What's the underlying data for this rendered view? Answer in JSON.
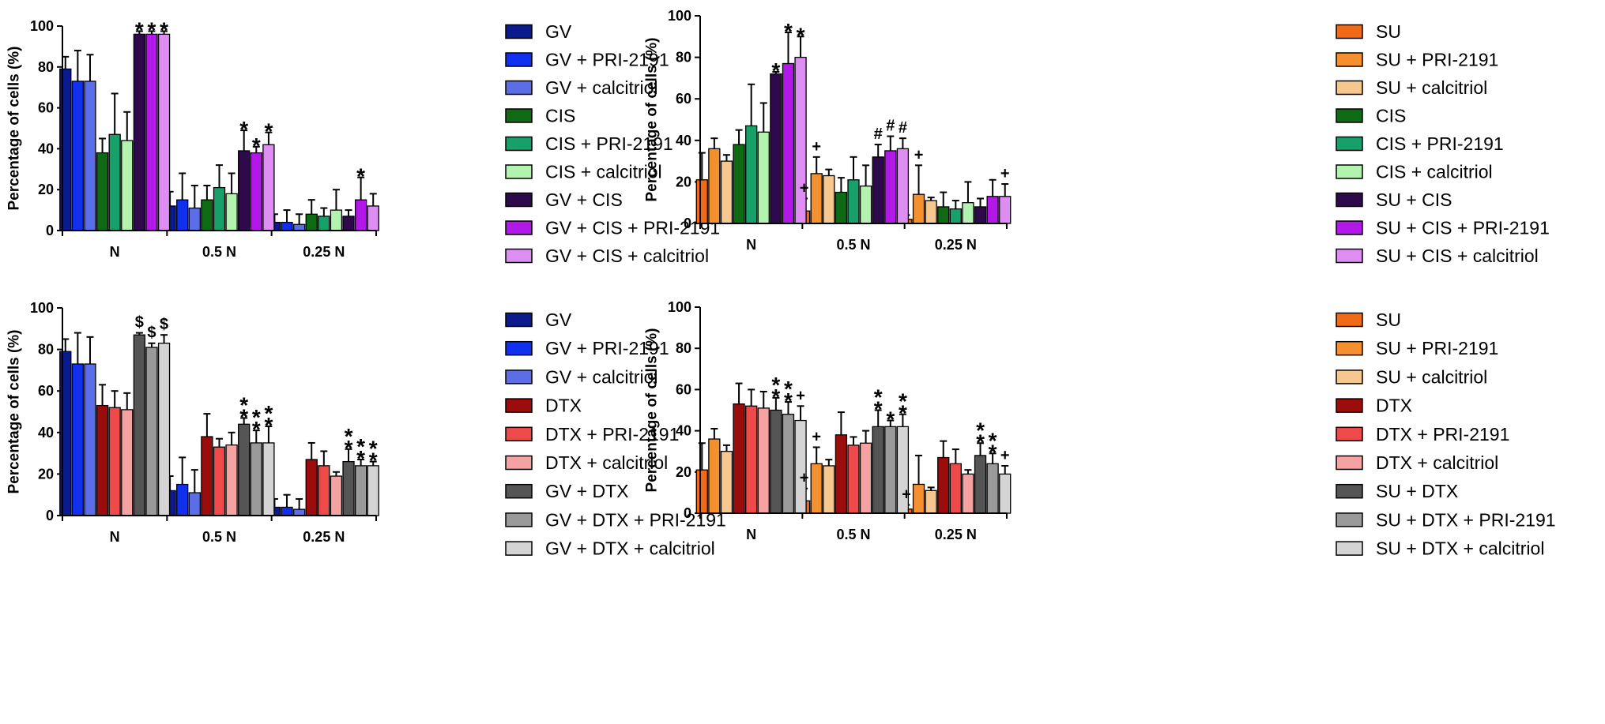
{
  "chart_data": [
    {
      "type": "bar",
      "ylabel": "Percentage of cells (%)",
      "ylim": [
        0,
        100
      ],
      "yticks": [
        "0",
        "20",
        "40",
        "60",
        "80",
        "100"
      ],
      "categories": [
        "N",
        "0.5 N",
        "0.25 N"
      ],
      "legend": "right",
      "series": [
        {
          "name": "GV",
          "color": "#0b1a8c",
          "values": [
            79,
            12,
            4
          ],
          "errors": [
            6,
            7,
            4
          ]
        },
        {
          "name": "GV + PRI-2191",
          "color": "#1030ee",
          "values": [
            73,
            15,
            4
          ],
          "errors": [
            15,
            13,
            6
          ]
        },
        {
          "name": "GV + calcitriol",
          "color": "#5b6ee8",
          "values": [
            73,
            11,
            3
          ],
          "errors": [
            13,
            11,
            5
          ]
        },
        {
          "name": "CIS",
          "color": "#0e6b14",
          "values": [
            38,
            15,
            8
          ],
          "errors": [
            7,
            7,
            7
          ]
        },
        {
          "name": "CIS + PRI-2191",
          "color": "#17a06a",
          "values": [
            47,
            21,
            7
          ],
          "errors": [
            20,
            11,
            4
          ]
        },
        {
          "name": "CIS + calcitriol",
          "color": "#b4f2b0",
          "values": [
            44,
            18,
            10
          ],
          "errors": [
            14,
            10,
            10
          ]
        },
        {
          "name": "GV + CIS",
          "color": "#2e0a4c",
          "values": [
            96,
            39,
            7
          ],
          "errors": [
            1.5,
            10,
            3
          ]
        },
        {
          "name": "GV + CIS + PRI-2191",
          "color": "#b218e8",
          "values": [
            96,
            38,
            15
          ],
          "errors": [
            1.5,
            3,
            11
          ]
        },
        {
          "name": "GV + CIS + calcitriol",
          "color": "#de8ef2",
          "values": [
            96,
            42,
            12
          ],
          "errors": [
            1.5,
            6,
            6
          ]
        }
      ],
      "annotations": [
        {
          "group": 0,
          "series": 6,
          "text": "*"
        },
        {
          "group": 0,
          "series": 7,
          "text": "*"
        },
        {
          "group": 0,
          "series": 8,
          "text": "*"
        },
        {
          "group": 1,
          "series": 6,
          "text": "*"
        },
        {
          "group": 1,
          "series": 7,
          "text": "*"
        },
        {
          "group": 1,
          "series": 8,
          "text": "*"
        },
        {
          "group": 2,
          "series": 7,
          "text": "*"
        }
      ]
    },
    {
      "type": "bar",
      "ylabel": "Percentage of cells (%)",
      "ylim": [
        0,
        100
      ],
      "yticks": [
        "0",
        "20",
        "40",
        "60",
        "80",
        "100"
      ],
      "categories": [
        "N",
        "0.5 N",
        "0.25 N"
      ],
      "legend": "right",
      "series": [
        {
          "name": "SU",
          "color": "#f06a18",
          "values": [
            21,
            6,
            2
          ],
          "errors": [
            13,
            6,
            2
          ]
        },
        {
          "name": "SU + PRI-2191",
          "color": "#f49030",
          "values": [
            36,
            24,
            14
          ],
          "errors": [
            5,
            8,
            14
          ]
        },
        {
          "name": "SU + calcitriol",
          "color": "#f6c890",
          "values": [
            30,
            23,
            11
          ],
          "errors": [
            3,
            3,
            1.5
          ]
        },
        {
          "name": "CIS",
          "color": "#0e6b14",
          "values": [
            38,
            15,
            8
          ],
          "errors": [
            7,
            7,
            7
          ]
        },
        {
          "name": "CIS + PRI-2191",
          "color": "#17a06a",
          "values": [
            47,
            21,
            7
          ],
          "errors": [
            20,
            11,
            4
          ]
        },
        {
          "name": "CIS + calcitriol",
          "color": "#b4f2b0",
          "values": [
            44,
            18,
            10
          ],
          "errors": [
            14,
            10,
            10
          ]
        },
        {
          "name": "SU + CIS",
          "color": "#2e0a4c",
          "values": [
            72,
            32,
            8
          ],
          "errors": [
            1,
            6,
            4
          ]
        },
        {
          "name": "SU + CIS + PRI-2191",
          "color": "#b218e8",
          "values": [
            77,
            35,
            13
          ],
          "errors": [
            15,
            7,
            8
          ]
        },
        {
          "name": "SU + CIS + calcitriol",
          "color": "#de8ef2",
          "values": [
            80,
            36,
            13
          ],
          "errors": [
            10,
            5,
            6
          ]
        }
      ],
      "annotations": [
        {
          "group": 0,
          "series": 6,
          "text": "*"
        },
        {
          "group": 0,
          "series": 7,
          "text": "*"
        },
        {
          "group": 0,
          "series": 8,
          "text": "*"
        },
        {
          "group": 1,
          "series": 0,
          "text": "+"
        },
        {
          "group": 1,
          "series": 1,
          "text": "+"
        },
        {
          "group": 1,
          "series": 6,
          "text": "#"
        },
        {
          "group": 1,
          "series": 7,
          "text": "#"
        },
        {
          "group": 1,
          "series": 8,
          "text": "#"
        },
        {
          "group": 2,
          "series": 1,
          "text": "+"
        },
        {
          "group": 2,
          "series": 8,
          "text": "+"
        }
      ]
    },
    {
      "type": "bar",
      "ylabel": "Percentage of cells (%)",
      "ylim": [
        0,
        100
      ],
      "yticks": [
        "0",
        "20",
        "40",
        "60",
        "80",
        "100"
      ],
      "categories": [
        "N",
        "0.5 N",
        "0.25 N"
      ],
      "legend": "right",
      "series": [
        {
          "name": "GV",
          "color": "#0b1a8c",
          "values": [
            79,
            12,
            4
          ],
          "errors": [
            6,
            7,
            4
          ]
        },
        {
          "name": "GV + PRI-2191",
          "color": "#1030ee",
          "values": [
            73,
            15,
            4
          ],
          "errors": [
            15,
            13,
            6
          ]
        },
        {
          "name": "GV + calcitriol",
          "color": "#5b6ee8",
          "values": [
            73,
            11,
            3
          ],
          "errors": [
            13,
            11,
            5
          ]
        },
        {
          "name": "DTX",
          "color": "#9b0c0c",
          "values": [
            53,
            38,
            27
          ],
          "errors": [
            10,
            11,
            8
          ]
        },
        {
          "name": "DTX + PRI-2191",
          "color": "#ee4a4a",
          "values": [
            52,
            33,
            24
          ],
          "errors": [
            8,
            4,
            7
          ]
        },
        {
          "name": "DTX + calcitriol",
          "color": "#f4a2a2",
          "values": [
            51,
            34,
            19
          ],
          "errors": [
            8,
            6,
            2
          ]
        },
        {
          "name": "GV + DTX",
          "color": "#555555",
          "values": [
            87,
            44,
            26
          ],
          "errors": [
            1,
            3,
            6
          ]
        },
        {
          "name": "GV + DTX + PRI-2191",
          "color": "#9a9a9a",
          "values": [
            81,
            35,
            24
          ],
          "errors": [
            2,
            6,
            3
          ]
        },
        {
          "name": "GV + DTX + calcitriol",
          "color": "#d4d4d4",
          "values": [
            83,
            35,
            24
          ],
          "errors": [
            4,
            8,
            2
          ]
        }
      ],
      "annotations": [
        {
          "group": 0,
          "series": 6,
          "text": "$"
        },
        {
          "group": 0,
          "series": 7,
          "text": "$"
        },
        {
          "group": 0,
          "series": 8,
          "text": "$"
        },
        {
          "group": 1,
          "series": 6,
          "text": "*"
        },
        {
          "group": 1,
          "series": 6,
          "text": "*"
        },
        {
          "group": 1,
          "series": 7,
          "text": "*"
        },
        {
          "group": 1,
          "series": 7,
          "text": "*"
        },
        {
          "group": 1,
          "series": 8,
          "text": "*"
        },
        {
          "group": 1,
          "series": 8,
          "text": "*"
        },
        {
          "group": 2,
          "series": 6,
          "text": "*"
        },
        {
          "group": 2,
          "series": 6,
          "text": "*"
        },
        {
          "group": 2,
          "series": 7,
          "text": "*"
        },
        {
          "group": 2,
          "series": 7,
          "text": "*"
        },
        {
          "group": 2,
          "series": 8,
          "text": "*"
        },
        {
          "group": 2,
          "series": 8,
          "text": "*"
        }
      ]
    },
    {
      "type": "bar",
      "ylabel": "Percentage of cells (%)",
      "ylim": [
        0,
        100
      ],
      "yticks": [
        "0",
        "20",
        "40",
        "60",
        "80",
        "100"
      ],
      "categories": [
        "N",
        "0.5 N",
        "0.25 N"
      ],
      "legend": "right",
      "series": [
        {
          "name": "SU",
          "color": "#f06a18",
          "values": [
            21,
            6,
            2
          ],
          "errors": [
            13,
            6,
            2
          ]
        },
        {
          "name": "SU + PRI-2191",
          "color": "#f49030",
          "values": [
            36,
            24,
            14
          ],
          "errors": [
            5,
            8,
            14
          ]
        },
        {
          "name": "SU + calcitriol",
          "color": "#f6c890",
          "values": [
            30,
            23,
            11
          ],
          "errors": [
            3,
            3,
            1.5
          ]
        },
        {
          "name": "DTX",
          "color": "#9b0c0c",
          "values": [
            53,
            38,
            27
          ],
          "errors": [
            10,
            11,
            8
          ]
        },
        {
          "name": "DTX + PRI-2191",
          "color": "#ee4a4a",
          "values": [
            52,
            33,
            24
          ],
          "errors": [
            8,
            4,
            7
          ]
        },
        {
          "name": "DTX +  calcitriol",
          "color": "#f4a2a2",
          "values": [
            51,
            34,
            19
          ],
          "errors": [
            8,
            6,
            2
          ]
        },
        {
          "name": "SU + DTX",
          "color": "#555555",
          "values": [
            50,
            42,
            28
          ],
          "errors": [
            6,
            8,
            6
          ]
        },
        {
          "name": "SU + DTX + PRI-2191",
          "color": "#9a9a9a",
          "values": [
            48,
            42,
            24
          ],
          "errors": [
            6,
            3,
            5
          ]
        },
        {
          "name": "SU + DTX + calcitriol",
          "color": "#d4d4d4",
          "values": [
            45,
            42,
            19
          ],
          "errors": [
            7,
            6,
            4
          ]
        }
      ],
      "annotations": [
        {
          "group": 0,
          "series": 6,
          "text": "*"
        },
        {
          "group": 0,
          "series": 6,
          "text": "*"
        },
        {
          "group": 0,
          "series": 7,
          "text": "*"
        },
        {
          "group": 0,
          "series": 7,
          "text": "*"
        },
        {
          "group": 0,
          "series": 8,
          "text": "+"
        },
        {
          "group": 1,
          "series": 0,
          "text": "+"
        },
        {
          "group": 1,
          "series": 1,
          "text": "+"
        },
        {
          "group": 1,
          "series": 6,
          "text": "*"
        },
        {
          "group": 1,
          "series": 6,
          "text": "*"
        },
        {
          "group": 1,
          "series": 7,
          "text": "*"
        },
        {
          "group": 1,
          "series": 8,
          "text": "*"
        },
        {
          "group": 1,
          "series": 8,
          "text": "*"
        },
        {
          "group": 2,
          "series": 0,
          "text": "+"
        },
        {
          "group": 2,
          "series": 6,
          "text": "*"
        },
        {
          "group": 2,
          "series": 6,
          "text": "*"
        },
        {
          "group": 2,
          "series": 7,
          "text": "*"
        },
        {
          "group": 2,
          "series": 7,
          "text": "*"
        },
        {
          "group": 2,
          "series": 8,
          "text": "+"
        }
      ]
    }
  ]
}
